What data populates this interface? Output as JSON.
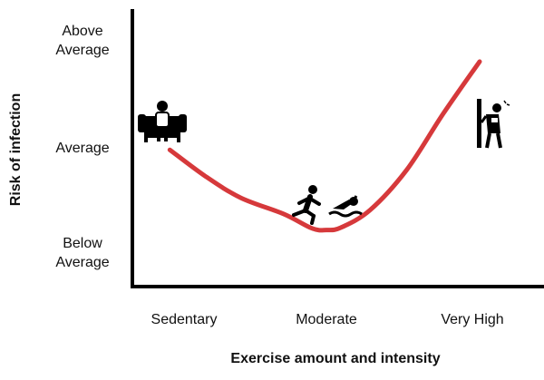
{
  "chart_data": {
    "type": "line",
    "xlabel": "Exercise amount and intensity",
    "ylabel": "Risk of infection",
    "x_categories": [
      "Sedentary",
      "Moderate",
      "Very High"
    ],
    "y_levels": [
      [
        "Below",
        "Average"
      ],
      [
        "Average"
      ],
      [
        "Above",
        "Average"
      ]
    ],
    "ylim": [
      0,
      2.5
    ],
    "series": [
      {
        "color": "#d6393b",
        "points": [
          {
            "x": -0.1,
            "y": 1.05
          },
          {
            "x": 0.15,
            "y": 0.72
          },
          {
            "x": 0.4,
            "y": 0.45
          },
          {
            "x": 0.7,
            "y": 0.25
          },
          {
            "x": 0.9,
            "y": 0.07
          },
          {
            "x": 1.0,
            "y": 0.05
          },
          {
            "x": 1.1,
            "y": 0.08
          },
          {
            "x": 1.3,
            "y": 0.3
          },
          {
            "x": 1.55,
            "y": 0.8
          },
          {
            "x": 1.8,
            "y": 1.5
          },
          {
            "x": 2.05,
            "y": 2.15
          }
        ]
      }
    ],
    "icons": [
      "couch-sitting-icon",
      "running-person-icon",
      "swimming-person-icon",
      "exhausted-person-icon"
    ]
  }
}
